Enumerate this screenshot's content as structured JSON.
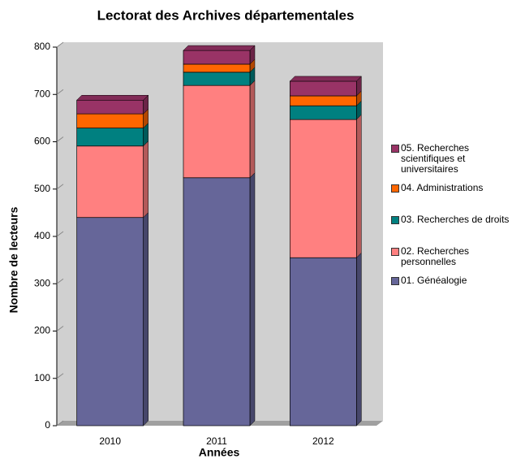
{
  "chart_data": {
    "type": "bar",
    "stacked": true,
    "title": "Lectorat des Archives départementales",
    "xlabel": "Années",
    "ylabel": "Nombre de lecteurs",
    "categories": [
      "2010",
      "2011",
      "2012"
    ],
    "ylim": [
      0,
      800
    ],
    "yticks": [
      0,
      100,
      200,
      300,
      400,
      500,
      600,
      700,
      800
    ],
    "series": [
      {
        "name": "01. Généalogie",
        "color": "#666699",
        "values": [
          440,
          524,
          355
        ]
      },
      {
        "name": "02. Recherches personnelles",
        "color": "#ff8080",
        "values": [
          151,
          195,
          292
        ]
      },
      {
        "name": "03. Recherches de droits",
        "color": "#008080",
        "values": [
          38,
          28,
          29
        ]
      },
      {
        "name": "04. Administrations",
        "color": "#ff6600",
        "values": [
          30,
          17,
          21
        ]
      },
      {
        "name": "05. Recherches scientifiques et universitaires",
        "color": "#993366",
        "values": [
          29,
          29,
          31
        ]
      }
    ]
  }
}
